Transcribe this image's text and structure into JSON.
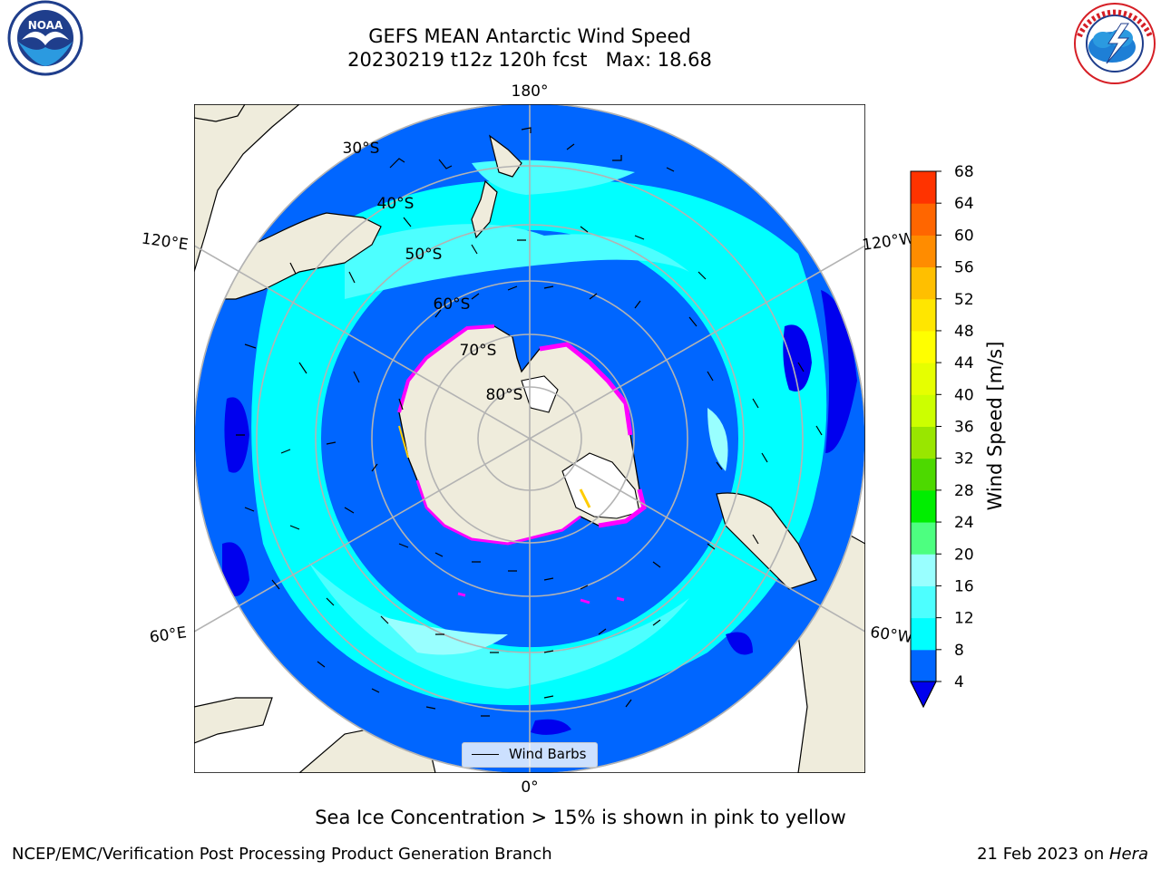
{
  "title": {
    "line1": "GEFS MEAN Antarctic Wind Speed",
    "line2": "20230219 t12z 120h fcst   Max: 18.68"
  },
  "logos": {
    "left": {
      "name": "noaa-logo",
      "text": "NOAA"
    },
    "right": {
      "name": "nws-logo",
      "text": "NATIONAL WEATHER SERVICE"
    }
  },
  "map": {
    "projection": "south-polar-stereographic",
    "longitude_labels": [
      "180°",
      "120°E",
      "120°W",
      "60°E",
      "60°W",
      "0°"
    ],
    "latitude_labels": [
      "30°S",
      "40°S",
      "50°S",
      "60°S",
      "70°S",
      "80°S"
    ],
    "colors": {
      "land": "#efecdc",
      "ice_shelf": "#ffffff",
      "wind_4_8": "#0066ff",
      "wind_8_12": "#00ffff",
      "wind_12_16": "#4dffff",
      "wind_16_20": "#99ffff",
      "below_4": "#0000ee",
      "sea_ice": "#ff00ff",
      "grid": "#b3b3b3"
    }
  },
  "legend": {
    "label": "Wind Barbs"
  },
  "colorbar": {
    "title": "Wind Speed [m/s]",
    "ticks": [
      "4",
      "8",
      "12",
      "16",
      "20",
      "24",
      "28",
      "32",
      "36",
      "40",
      "44",
      "48",
      "52",
      "56",
      "60",
      "64",
      "68"
    ],
    "colors": [
      "#0066ff",
      "#00ffff",
      "#4dffff",
      "#99ffff",
      "#4dff80",
      "#00ee00",
      "#4dd900",
      "#99e600",
      "#ccff00",
      "#e6ff00",
      "#ffff00",
      "#ffe600",
      "#ffbf00",
      "#ff8c00",
      "#ff6600",
      "#ff3300"
    ],
    "extend_color": "#0000ee"
  },
  "caption": "Sea Ice Concentration > 15% is shown in pink to yellow",
  "footer": {
    "left": "NCEP/EMC/Verification Post Processing Product Generation Branch",
    "date": "21 Feb 2023 on ",
    "machine": "Hera"
  }
}
